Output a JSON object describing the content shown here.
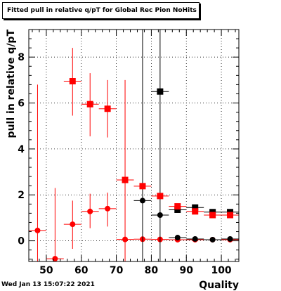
{
  "title": "Fitted pull in relative q/pT  for Global Rec Pion NoHits",
  "timestamp": "Wed Jan 13 15:07:22 2021",
  "chart_data": {
    "type": "scatter",
    "title": "Fitted pull in relative q/pT  for Global Rec Pion NoHits",
    "xlabel": "Quality",
    "ylabel": "pull in relative q/pT",
    "xlim": [
      45,
      105
    ],
    "ylim": [
      -0.9,
      9.2
    ],
    "x_ticks": [
      50,
      60,
      70,
      80,
      90,
      100
    ],
    "y_ticks": [
      0,
      2,
      4,
      6,
      8
    ],
    "grid": true,
    "series": [
      {
        "marker": "circle",
        "color": "#ff0000",
        "points": [
          {
            "x": 47.5,
            "y": 0.45,
            "ylo": -0.9,
            "yhi": 6.8,
            "xerr": 2.5
          },
          {
            "x": 52.5,
            "y": -0.78,
            "ylo": -0.9,
            "yhi": 2.3,
            "xerr": 2.5
          },
          {
            "x": 57.5,
            "y": 0.72,
            "ylo": -0.35,
            "yhi": 1.75,
            "xerr": 2.5
          },
          {
            "x": 62.5,
            "y": 1.28,
            "ylo": 0.55,
            "yhi": 2.05,
            "xerr": 2.5
          },
          {
            "x": 67.5,
            "y": 1.4,
            "ylo": 0.62,
            "yhi": 2.1,
            "xerr": 2.5
          },
          {
            "x": 72.5,
            "y": 0.06,
            "ylo": -0.9,
            "yhi": 7.0,
            "xerr": 2.5
          },
          {
            "x": 77.5,
            "y": 0.07,
            "ylo": 0.07,
            "yhi": 0.07,
            "xerr": 2.5
          },
          {
            "x": 82.5,
            "y": 0.06,
            "ylo": 0.06,
            "yhi": 0.06,
            "xerr": 2.5
          },
          {
            "x": 87.5,
            "y": 0.05,
            "ylo": 0.05,
            "yhi": 0.05,
            "xerr": 2.5
          },
          {
            "x": 92.5,
            "y": 0.05,
            "ylo": 0.05,
            "yhi": 0.05,
            "xerr": 2.5
          },
          {
            "x": 97.5,
            "y": 0.05,
            "ylo": 0.05,
            "yhi": 0.05,
            "xerr": 2.5
          },
          {
            "x": 102.5,
            "y": 0.05,
            "ylo": 0.05,
            "yhi": 0.05,
            "xerr": 2.5
          }
        ]
      },
      {
        "marker": "circle",
        "color": "#000000",
        "points": [
          {
            "x": 77.5,
            "y": 1.75,
            "ylo": -0.9,
            "yhi": 9.2,
            "xerr": 2.5
          },
          {
            "x": 82.5,
            "y": 1.12,
            "ylo": -0.9,
            "yhi": 9.2,
            "xerr": 2.5
          },
          {
            "x": 87.5,
            "y": 0.14,
            "ylo": 0.14,
            "yhi": 0.14,
            "xerr": 2.5
          },
          {
            "x": 92.5,
            "y": 0.08,
            "ylo": 0.08,
            "yhi": 0.08,
            "xerr": 2.5
          },
          {
            "x": 97.5,
            "y": 0.05,
            "ylo": 0.05,
            "yhi": 0.05,
            "xerr": 2.5
          },
          {
            "x": 102.5,
            "y": 0.08,
            "ylo": 0.08,
            "yhi": 0.08,
            "xerr": 2.5
          }
        ]
      },
      {
        "marker": "square",
        "color": "#000000",
        "points": [
          {
            "x": 82.5,
            "y": 6.5,
            "ylo": 6.5,
            "yhi": 6.5,
            "xerr": 2.5
          },
          {
            "x": 87.5,
            "y": 1.35,
            "ylo": 1.35,
            "yhi": 1.35,
            "xerr": 2.5
          },
          {
            "x": 92.5,
            "y": 1.45,
            "ylo": 1.45,
            "yhi": 1.45,
            "xerr": 2.5
          },
          {
            "x": 97.5,
            "y": 1.25,
            "ylo": 1.25,
            "yhi": 1.25,
            "xerr": 2.5
          },
          {
            "x": 102.5,
            "y": 1.25,
            "ylo": 1.25,
            "yhi": 1.25,
            "xerr": 2.5
          }
        ]
      },
      {
        "marker": "square",
        "color": "#ff0000",
        "points": [
          {
            "x": 57.5,
            "y": 6.95,
            "ylo": 5.45,
            "yhi": 8.4,
            "xerr": 2.5
          },
          {
            "x": 62.5,
            "y": 5.95,
            "ylo": 4.55,
            "yhi": 7.3,
            "xerr": 2.5
          },
          {
            "x": 67.5,
            "y": 5.75,
            "ylo": 4.5,
            "yhi": 7.0,
            "xerr": 2.5
          },
          {
            "x": 72.5,
            "y": 2.65,
            "ylo": 2.65,
            "yhi": 2.65,
            "xerr": 2.5
          },
          {
            "x": 77.5,
            "y": 2.38,
            "ylo": 2.38,
            "yhi": 2.38,
            "xerr": 2.5
          },
          {
            "x": 82.5,
            "y": 1.95,
            "ylo": 1.95,
            "yhi": 1.95,
            "xerr": 2.5
          },
          {
            "x": 87.5,
            "y": 1.5,
            "ylo": 1.5,
            "yhi": 1.5,
            "xerr": 2.5
          },
          {
            "x": 92.5,
            "y": 1.28,
            "ylo": 1.28,
            "yhi": 1.28,
            "xerr": 2.5
          },
          {
            "x": 97.5,
            "y": 1.12,
            "ylo": 1.12,
            "yhi": 1.12,
            "xerr": 2.5
          },
          {
            "x": 102.5,
            "y": 1.12,
            "ylo": 1.12,
            "yhi": 1.12,
            "xerr": 2.5
          }
        ]
      }
    ]
  }
}
